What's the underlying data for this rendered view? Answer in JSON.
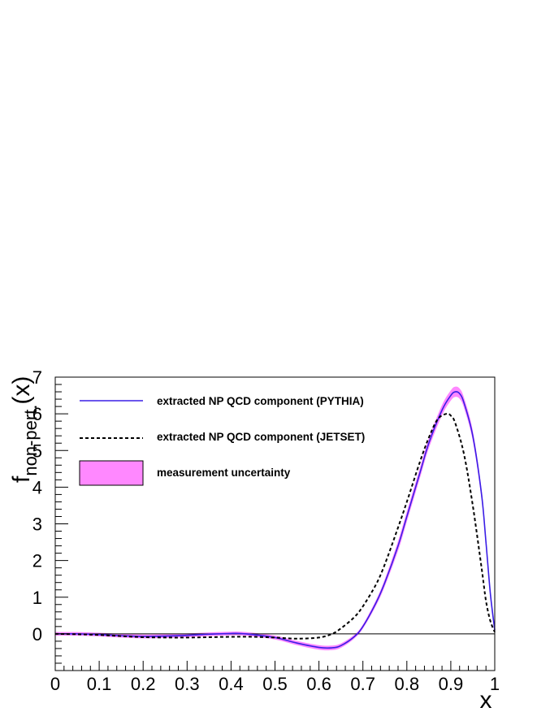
{
  "chart_data": {
    "type": "line",
    "xlabel": "x",
    "ylabel": {
      "main": "f",
      "subscript": "non-pert.",
      "suffix": "(x)"
    },
    "xlim": [
      0,
      1
    ],
    "ylim": [
      -1,
      7
    ],
    "x_ticks": [
      "0",
      "0.1",
      "0.2",
      "0.3",
      "0.4",
      "0.5",
      "0.6",
      "0.7",
      "0.8",
      "0.9",
      "1"
    ],
    "y_ticks": [
      "0",
      "1",
      "2",
      "3",
      "4",
      "5",
      "6",
      "7"
    ],
    "grid": false,
    "legend_position": "top-left",
    "zero_line": true,
    "series": [
      {
        "name": "extracted NP QCD component (PYTHIA)",
        "style": "solid",
        "color": "#3a1ee6",
        "x": [
          0,
          0.05,
          0.1,
          0.15,
          0.2,
          0.25,
          0.3,
          0.35,
          0.4,
          0.42,
          0.45,
          0.5,
          0.55,
          0.6,
          0.63,
          0.65,
          0.68,
          0.7,
          0.73,
          0.75,
          0.78,
          0.8,
          0.83,
          0.85,
          0.88,
          0.9,
          0.91,
          0.92,
          0.93,
          0.95,
          0.97,
          0.98,
          0.99,
          1.0
        ],
        "y": [
          0,
          0.0,
          -0.02,
          -0.05,
          -0.07,
          -0.06,
          -0.04,
          -0.01,
          0.01,
          0.01,
          -0.02,
          -0.1,
          -0.25,
          -0.37,
          -0.38,
          -0.32,
          -0.08,
          0.2,
          0.85,
          1.4,
          2.4,
          3.2,
          4.4,
          5.2,
          6.1,
          6.5,
          6.6,
          6.55,
          6.3,
          5.4,
          3.8,
          2.5,
          1.1,
          0.1
        ]
      },
      {
        "name": "extracted NP QCD component (JETSET)",
        "style": "dashed",
        "color": "#000000",
        "x": [
          0,
          0.05,
          0.1,
          0.15,
          0.2,
          0.25,
          0.3,
          0.35,
          0.4,
          0.45,
          0.5,
          0.55,
          0.6,
          0.63,
          0.65,
          0.68,
          0.7,
          0.73,
          0.75,
          0.78,
          0.8,
          0.83,
          0.85,
          0.87,
          0.89,
          0.9,
          0.91,
          0.93,
          0.95,
          0.97,
          0.98,
          0.99,
          1.0
        ],
        "y": [
          0,
          -0.01,
          -0.03,
          -0.06,
          -0.09,
          -0.1,
          -0.1,
          -0.09,
          -0.08,
          -0.08,
          -0.1,
          -0.13,
          -0.1,
          0.0,
          0.15,
          0.45,
          0.75,
          1.35,
          1.9,
          2.9,
          3.6,
          4.7,
          5.35,
          5.85,
          6.0,
          5.95,
          5.75,
          4.9,
          3.5,
          1.8,
          0.9,
          0.35,
          0.05
        ]
      }
    ],
    "band": {
      "name": "measurement uncertainty",
      "color": "#ff88ff",
      "follows_series": 0,
      "half_width": 0.14
    }
  }
}
